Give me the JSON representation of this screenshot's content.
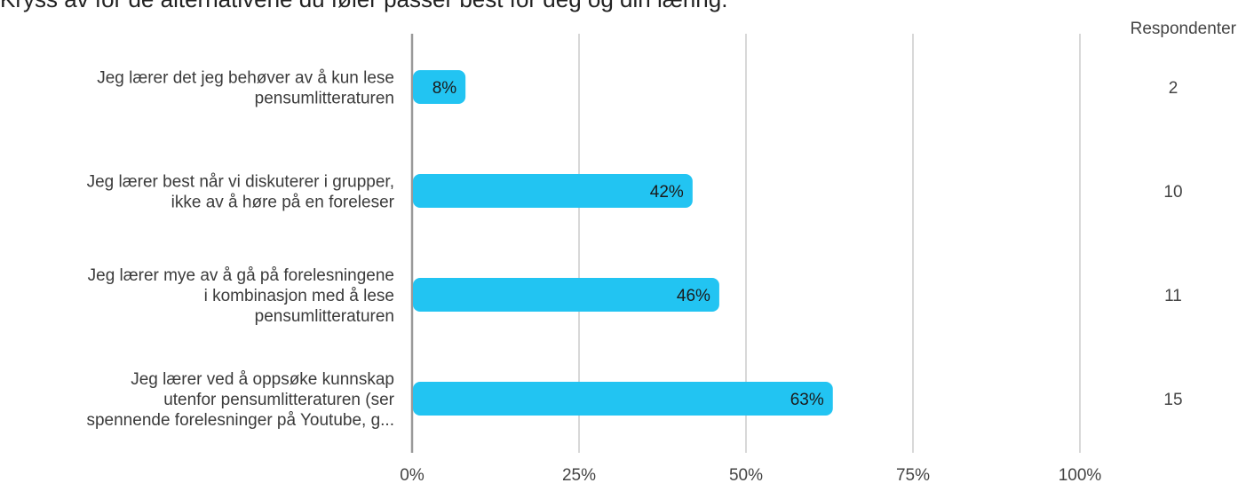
{
  "title": "Kryss av for de alternativene du føler passer best for deg og din læring.",
  "respondents_header": "Respondenter",
  "colors": {
    "bar": "#22c4f2",
    "grid": "#bdbdbd",
    "axis": "#999999"
  },
  "chart_data": {
    "type": "bar",
    "orientation": "horizontal",
    "title": "Kryss av for de alternativene du føler passer best for deg og din læring.",
    "categories": [
      [
        "Jeg lærer det jeg behøver av å kun lese",
        "pensumlitteraturen"
      ],
      [
        "Jeg lærer best når vi diskuterer i grupper,",
        "ikke av å høre på en foreleser"
      ],
      [
        "Jeg lærer mye av å gå på forelesningene",
        "i kombinasjon med å lese",
        "pensumlitteraturen"
      ],
      [
        "Jeg lærer ved å oppsøke kunnskap",
        "utenfor pensumlitteraturen (ser",
        "spennende forelesninger på Youtube, g..."
      ]
    ],
    "values": [
      8,
      42,
      46,
      63
    ],
    "value_labels": [
      "8%",
      "42%",
      "46%",
      "63%"
    ],
    "respondents": [
      "2",
      "10",
      "11",
      "15"
    ],
    "xlim": [
      0,
      100
    ],
    "xticks": [
      0,
      25,
      50,
      75,
      100
    ],
    "xtick_labels": [
      "0%",
      "25%",
      "50%",
      "75%",
      "100%"
    ],
    "grid": true,
    "legend": "none"
  }
}
